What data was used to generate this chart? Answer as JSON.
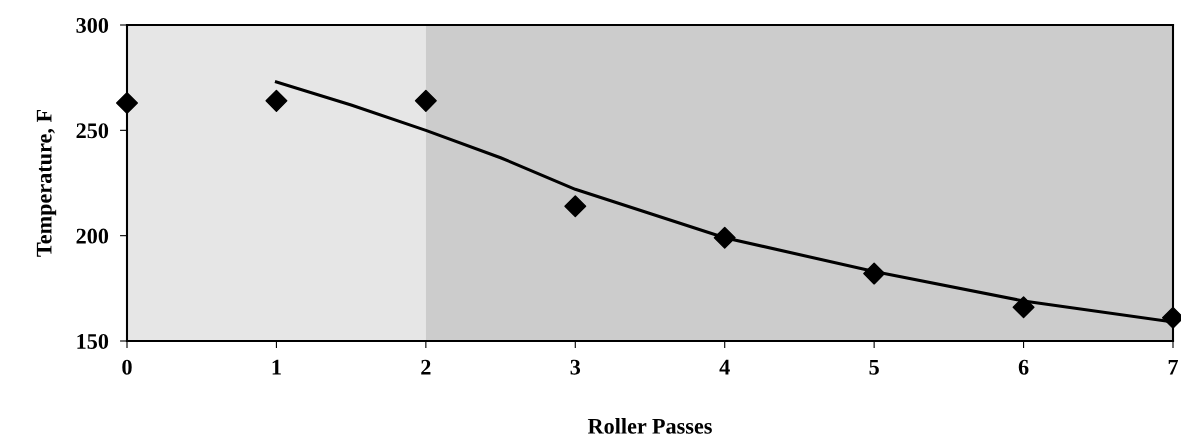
{
  "chart_data": {
    "type": "scatter",
    "xlabel": "Roller Passes",
    "ylabel": "Temperature, F",
    "xlim": [
      0,
      7
    ],
    "xticks": [
      0,
      1,
      2,
      3,
      4,
      5,
      6,
      7
    ],
    "ylim": [
      150,
      300
    ],
    "yticks": [
      150,
      200,
      250,
      300
    ],
    "marker": "diamond",
    "grid": false,
    "legend": false,
    "series": [
      {
        "color": "#000000",
        "x": [
          0,
          1,
          2,
          3,
          4,
          5,
          6,
          7
        ],
        "values": [
          263,
          264,
          264,
          214,
          199,
          182,
          166,
          161
        ]
      },
      {
        "type": "line",
        "color": "#000000",
        "marker": "none",
        "x": [
          1,
          1.5,
          2,
          2.5,
          3,
          4,
          5,
          6,
          7
        ],
        "values": [
          273,
          262,
          250,
          237,
          222,
          199,
          183,
          169,
          159
        ]
      }
    ],
    "bands": [
      {
        "axis": "x",
        "from": 0,
        "to": 2,
        "color": "#e6e6e6"
      },
      {
        "axis": "x",
        "from": 2,
        "to": 7,
        "color": "#cccccc"
      }
    ]
  }
}
